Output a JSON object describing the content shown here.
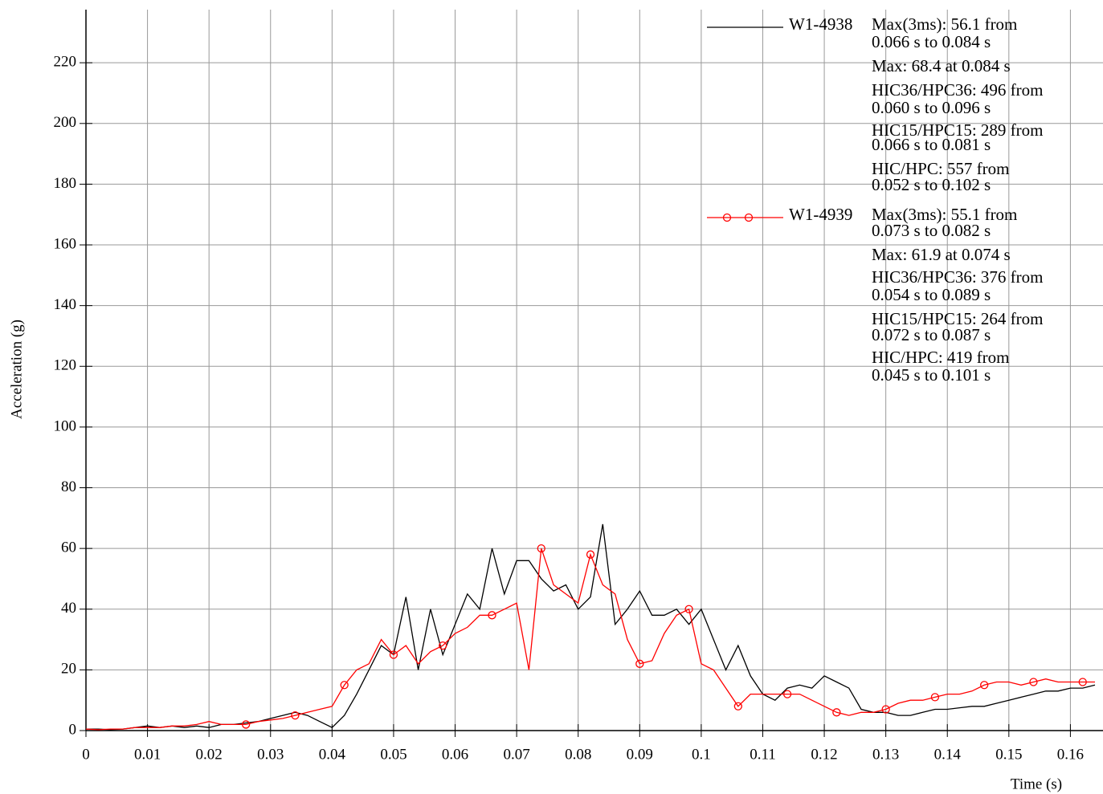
{
  "chart_data": {
    "type": "line",
    "x_label": "Time (s)",
    "y_label": "Acceleration (g)",
    "xlim": [
      0,
      0.1653
    ],
    "ylim": [
      0,
      237.5
    ],
    "xticks": [
      0,
      0.01,
      0.02,
      0.03,
      0.04,
      0.05,
      0.06,
      0.07,
      0.08,
      0.09,
      0.1,
      0.11,
      0.12,
      0.13,
      0.14,
      0.15,
      0.16
    ],
    "yticks": [
      0,
      20,
      40,
      60,
      80,
      100,
      120,
      140,
      160,
      180,
      200,
      220
    ],
    "grid": true,
    "x": [
      0,
      0.002,
      0.004,
      0.006,
      0.008,
      0.01,
      0.012,
      0.014,
      0.016,
      0.018,
      0.02,
      0.022,
      0.024,
      0.026,
      0.028,
      0.03,
      0.032,
      0.034,
      0.036,
      0.038,
      0.04,
      0.042,
      0.044,
      0.046,
      0.048,
      0.05,
      0.052,
      0.054,
      0.056,
      0.058,
      0.06,
      0.062,
      0.064,
      0.066,
      0.068,
      0.07,
      0.072,
      0.074,
      0.076,
      0.078,
      0.08,
      0.082,
      0.084,
      0.086,
      0.088,
      0.09,
      0.092,
      0.094,
      0.096,
      0.098,
      0.1,
      0.102,
      0.104,
      0.106,
      0.108,
      0.11,
      0.112,
      0.114,
      0.116,
      0.118,
      0.12,
      0.122,
      0.124,
      0.126,
      0.128,
      0.13,
      0.132,
      0.134,
      0.136,
      0.138,
      0.14,
      0.142,
      0.144,
      0.146,
      0.148,
      0.15,
      0.152,
      0.154,
      0.156,
      0.158,
      0.16,
      0.162,
      0.164
    ],
    "series": [
      {
        "name": "W1-4938",
        "color": "#000000",
        "marker": "none",
        "notes": [
          "Max(3ms): 56.1 from",
          "0.066 s to 0.084 s",
          "Max: 68.4 at 0.084 s",
          "HIC36/HPC36: 496 from",
          "0.060 s to 0.096 s",
          "HIC15/HPC15: 289 from",
          "0.066 s to 0.081 s",
          "HIC/HPC: 557 from",
          "0.052 s to 0.102 s"
        ],
        "values": [
          0.5,
          0.5,
          0.3,
          0.5,
          1,
          1.5,
          1,
          1.5,
          1,
          1.5,
          1,
          2,
          2,
          2.5,
          3,
          4,
          5,
          6,
          5,
          3,
          1,
          5,
          12,
          20,
          28,
          25,
          44,
          20,
          40,
          25,
          35,
          45,
          40,
          60,
          45,
          56,
          56,
          50,
          46,
          48,
          40,
          44,
          68,
          35,
          40,
          46,
          38,
          38,
          40,
          35,
          40,
          30,
          20,
          28,
          18,
          12,
          10,
          14,
          15,
          14,
          18,
          16,
          14,
          7,
          6,
          6,
          5,
          5,
          6,
          7,
          7,
          7.5,
          8,
          8,
          9,
          10,
          11,
          12,
          13,
          13,
          14,
          14,
          15
        ]
      },
      {
        "name": "W1-4939",
        "color": "#ff0000",
        "marker": "circle",
        "notes": [
          "Max(3ms): 55.1 from",
          "0.073 s to 0.082 s",
          "Max: 61.9 at 0.074 s",
          "HIC36/HPC36: 376 from",
          "0.054 s to 0.089 s",
          "HIC15/HPC15: 264 from",
          "0.072 s to 0.087 s",
          "HIC/HPC: 419 from",
          "0.045 s to 0.101 s"
        ],
        "values": [
          0.5,
          0.3,
          0.5,
          0.5,
          1,
          1,
          1,
          1.5,
          1.5,
          2,
          3,
          2,
          2,
          2,
          3,
          3.5,
          4,
          5,
          6,
          7,
          8,
          15,
          20,
          22,
          30,
          25,
          28,
          22,
          26,
          28,
          32,
          34,
          38,
          38,
          40,
          42,
          20,
          60,
          48,
          45,
          42,
          58,
          48,
          45,
          30,
          22,
          23,
          32,
          38,
          40,
          22,
          20,
          14,
          8,
          12,
          12,
          12,
          12,
          12,
          10,
          8,
          6,
          5,
          6,
          6,
          7,
          9,
          10,
          10,
          11,
          12,
          12,
          13,
          15,
          16,
          16,
          15,
          16,
          17,
          16,
          16,
          16,
          16
        ]
      }
    ]
  }
}
